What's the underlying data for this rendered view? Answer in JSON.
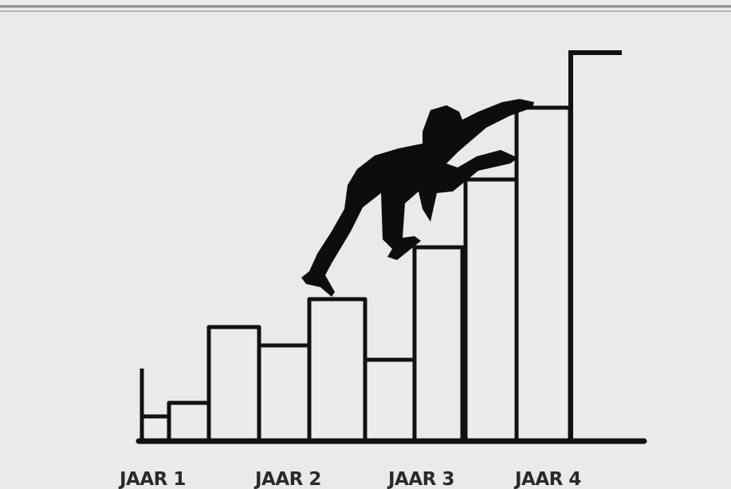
{
  "labels": [
    "JAAR 1",
    "JAAR 2",
    "JAAR 3",
    "JAAR 4"
  ]
}
